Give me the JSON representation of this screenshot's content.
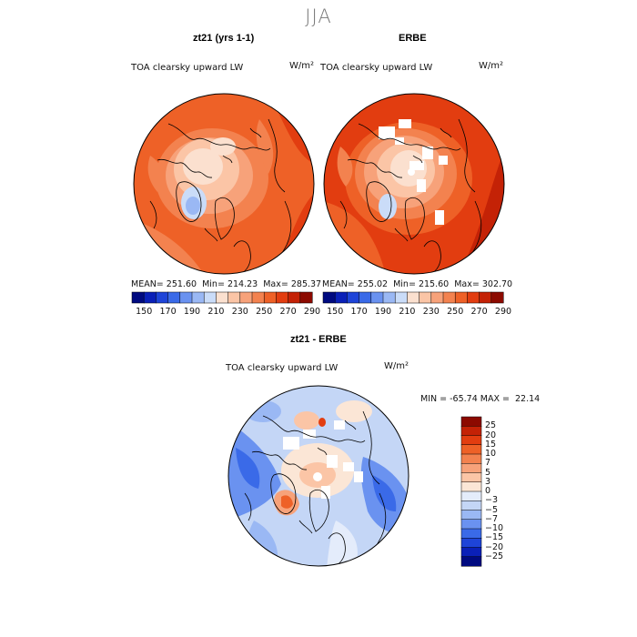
{
  "figure": {
    "title": "JJA",
    "colors": {
      "land_outline": "#000000",
      "map_border": "#000000",
      "missing": "#ffffff"
    }
  },
  "panels": [
    {
      "title": "zt21 (yrs 1-1)",
      "variable": "TOA clearsky upward LW",
      "units": "W/m²",
      "mean": "251.60",
      "min": "214.23",
      "max": "285.37"
    },
    {
      "title": "ERBE",
      "variable": "TOA clearsky upward LW",
      "units": "W/m²",
      "mean": "255.02",
      "min": "215.60",
      "max": "302.70"
    },
    {
      "title": "zt21 - ERBE",
      "variable": "TOA clearsky upward LW",
      "units": "W/m²",
      "min": "-65.74",
      "max": "22.14"
    }
  ],
  "colorbar_abs": {
    "labels": [
      "150",
      "170",
      "190",
      "210",
      "230",
      "250",
      "270",
      "290"
    ],
    "colors": [
      "#000a80",
      "#0a20b8",
      "#1e44d8",
      "#3a6ae8",
      "#6a92f0",
      "#9ab8f4",
      "#cadcf8",
      "#fbe0cf",
      "#fbc5a6",
      "#f7a27a",
      "#f3824f",
      "#ee6127",
      "#e23d10",
      "#c42206",
      "#8c0a00"
    ]
  },
  "colorbar_diff": {
    "labels": [
      "25",
      "20",
      "15",
      "10",
      "7",
      "5",
      "3",
      "0",
      "−3",
      "−5",
      "−7",
      "−10",
      "−15",
      "−20",
      "−25"
    ],
    "colors": [
      "#8c0a00",
      "#c42206",
      "#e23d10",
      "#ee6127",
      "#f3824f",
      "#f7a27a",
      "#fbc5a6",
      "#fbe6d6",
      "#e4ecfb",
      "#c4d6f6",
      "#9ab8f4",
      "#6a92f0",
      "#3a6ae8",
      "#1e44d8",
      "#0a20b8",
      "#000a80"
    ]
  }
}
